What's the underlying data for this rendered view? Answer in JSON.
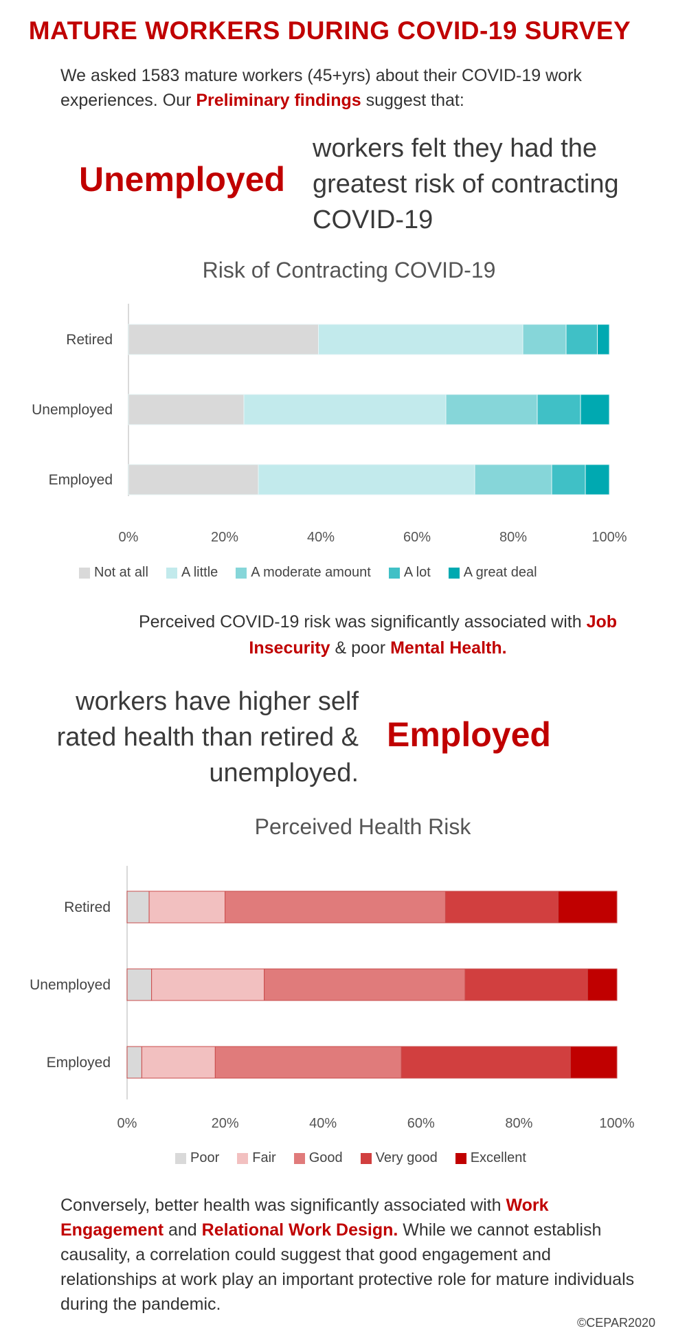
{
  "header": {
    "title": "MATURE WORKERS DURING COVID-19 SURVEY",
    "intro_a": "We asked 1583 mature workers (45+yrs) about their COVID-19 work experiences. Our ",
    "intro_highlight": "Preliminary findings",
    "intro_b": " suggest that:"
  },
  "headline1": {
    "big": "Unemployed",
    "text": "workers felt they had the greatest risk of contracting COVID-19"
  },
  "finding1": {
    "a": "Perceived COVID-19 risk was significantly associated with ",
    "h1": "Job Insecurity",
    "b": " & poor ",
    "h2": "Mental Health."
  },
  "headline2": {
    "text": "workers have higher self rated health than retired & unemployed.",
    "big": "Employed"
  },
  "finding2": {
    "a": "Conversely, better health was significantly associated with ",
    "h1": "Work Engagement",
    "b": " and ",
    "h2": "Relational Work Design.",
    "c": " While we cannot establish causality, a correlation could suggest that good engagement and relationships at work play an important protective role for mature individuals during the pandemic."
  },
  "copyright": "©CEPAR2020",
  "chart_data": [
    {
      "type": "bar",
      "orientation": "horizontal",
      "stacked": "percent",
      "title": "Risk of Contracting COVID-19",
      "categories": [
        "Retired",
        "Unemployed",
        "Employed"
      ],
      "series": [
        {
          "name": "Not at all",
          "color": "#d9d9d9",
          "values": [
            39.5,
            24,
            27
          ]
        },
        {
          "name": "A little",
          "color": "#c2eaec",
          "values": [
            42.5,
            42,
            45
          ]
        },
        {
          "name": "A moderate amount",
          "color": "#86d6d9",
          "values": [
            9,
            19,
            16
          ]
        },
        {
          "name": "A lot",
          "color": "#40c0c6",
          "values": [
            6.5,
            9,
            7
          ]
        },
        {
          "name": "A great deal",
          "color": "#00a9b1",
          "values": [
            2.5,
            6,
            5
          ]
        }
      ],
      "xlim": [
        0,
        100
      ],
      "xticks": [
        "0%",
        "20%",
        "40%",
        "60%",
        "80%",
        "100%"
      ],
      "legend": "bottom",
      "grid": false
    },
    {
      "type": "bar",
      "orientation": "horizontal",
      "stacked": "percent",
      "title": "Perceived Health Risk",
      "categories": [
        "Retired",
        "Unemployed",
        "Employed"
      ],
      "series": [
        {
          "name": "Poor",
          "color": "#d9d9d9",
          "values": [
            4.5,
            5,
            3
          ]
        },
        {
          "name": "Fair",
          "color": "#f2c0c0",
          "values": [
            15.5,
            23,
            15
          ]
        },
        {
          "name": "Good",
          "color": "#e07b7b",
          "values": [
            45,
            41,
            38
          ]
        },
        {
          "name": "Very good",
          "color": "#d13f3f",
          "values": [
            23,
            25,
            34.5
          ]
        },
        {
          "name": "Excellent",
          "color": "#c00000",
          "values": [
            12,
            6,
            9.5
          ]
        }
      ],
      "xlim": [
        0,
        100
      ],
      "xticks": [
        "0%",
        "20%",
        "40%",
        "60%",
        "80%",
        "100%"
      ],
      "legend": "bottom",
      "grid": false
    }
  ]
}
